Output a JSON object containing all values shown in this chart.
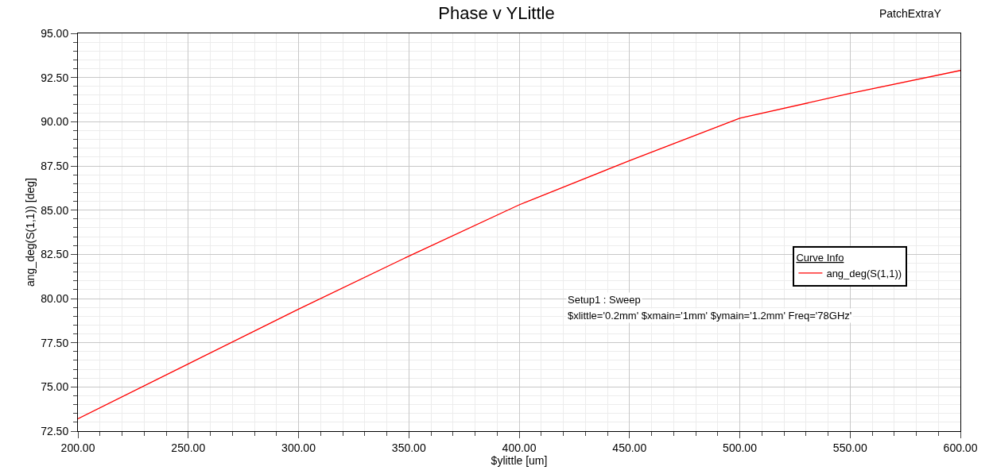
{
  "chart_data": {
    "type": "line",
    "title": "Phase v YLittle",
    "xlabel": "$ylittle [um]",
    "ylabel": "ang_deg(S(1,1)) [deg]",
    "legend_title": "Curve Info",
    "annotations": [
      "PatchExtraY",
      "Setup1 : Sweep",
      "$xlittle='0.2mm' $xmain='1mm' $ymain='1.2mm' Freq='78GHz'"
    ],
    "x": [
      200,
      250,
      300,
      350,
      400,
      450,
      500,
      550,
      600
    ],
    "series": [
      {
        "name": "ang_deg(S(1,1))",
        "color": "#ff0000",
        "values": [
          73.2,
          76.3,
          79.4,
          82.4,
          85.3,
          87.8,
          90.2,
          91.6,
          92.9
        ]
      }
    ],
    "xlim": [
      200,
      600
    ],
    "xticks": [
      {
        "value": 200,
        "label": "200.00"
      },
      {
        "value": 250,
        "label": "250.00"
      },
      {
        "value": 300,
        "label": "300.00"
      },
      {
        "value": 350,
        "label": "350.00"
      },
      {
        "value": 400,
        "label": "400.00"
      },
      {
        "value": 450,
        "label": "450.00"
      },
      {
        "value": 500,
        "label": "500.00"
      },
      {
        "value": 550,
        "label": "550.00"
      },
      {
        "value": 600,
        "label": "600.00"
      }
    ],
    "ylim": [
      72.5,
      95
    ],
    "yticks": [
      {
        "value": 72.5,
        "label": "72.50"
      },
      {
        "value": 75,
        "label": "75.00"
      },
      {
        "value": 77.5,
        "label": "77.50"
      },
      {
        "value": 80,
        "label": "80.00"
      },
      {
        "value": 82.5,
        "label": "82.50"
      },
      {
        "value": 85,
        "label": "85.00"
      },
      {
        "value": 87.5,
        "label": "87.50"
      },
      {
        "value": 90,
        "label": "90.00"
      },
      {
        "value": 92.5,
        "label": "92.50"
      },
      {
        "value": 95,
        "label": "95.00"
      }
    ],
    "grid": true,
    "legend": "right",
    "marker": "none",
    "line_style": "solid"
  }
}
